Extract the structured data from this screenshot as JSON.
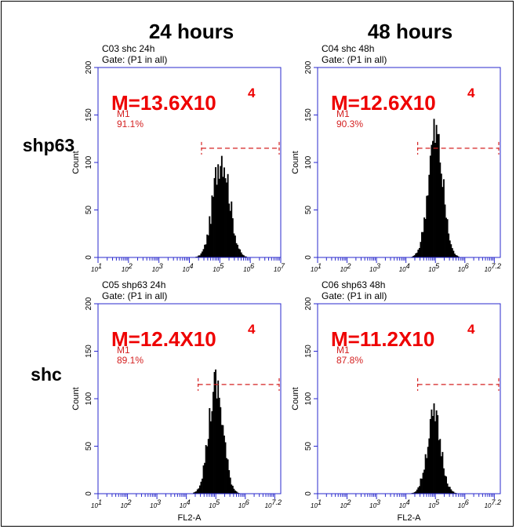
{
  "column_headers": [
    "24 hours",
    "48 hours"
  ],
  "row_labels": [
    "shp63",
    "shc"
  ],
  "colors": {
    "axis": "#2a2acc",
    "gate": "#d42020",
    "histogram": "#000000",
    "annotation": "#ee0000",
    "text": "#000000"
  },
  "chart_data": [
    {
      "type": "area",
      "title": "C03 shc 24h",
      "subtitle": "Gate: (P1 in all)",
      "xlabel": "",
      "ylabel": "Count",
      "x_scale": "log",
      "xlim": [
        10,
        10000000
      ],
      "ylim": [
        0,
        200
      ],
      "y_ticks": [
        0,
        50,
        100,
        150,
        200
      ],
      "x_ticks": [
        "10^1",
        "10^2",
        "10^3",
        "10^4",
        "10^5",
        "10^6",
        "10^7"
      ],
      "gate": {
        "name": "M1",
        "percent": "91.1%",
        "range": [
          25000,
          10000000
        ],
        "level": 115
      },
      "mean_label": "M=13.6X10",
      "mean_exponent": "4",
      "series": [
        {
          "log10_center": 5.05,
          "spread": 0.26,
          "peak": 110
        }
      ]
    },
    {
      "type": "area",
      "title": "C04 shc 48h",
      "subtitle": "Gate: (P1 in all)",
      "xlabel": "",
      "ylabel": "Count",
      "x_scale": "log",
      "xlim": [
        10,
        16000000
      ],
      "ylim": [
        0,
        200
      ],
      "y_ticks": [
        0,
        50,
        100,
        150,
        200
      ],
      "x_ticks": [
        "10^1",
        "10^2",
        "10^3",
        "10^4",
        "10^5",
        "10^6",
        "10^7.2"
      ],
      "gate": {
        "name": "M1",
        "percent": "90.3%",
        "range": [
          25000,
          16000000
        ],
        "level": 115
      },
      "mean_label": "M=12.6X10",
      "mean_exponent": "4",
      "series": [
        {
          "log10_center": 5.0,
          "spread": 0.25,
          "peak": 130
        }
      ]
    },
    {
      "type": "area",
      "title": "C05 shp63 24h",
      "subtitle": "Gate: (P1 in all)",
      "xlabel": "FL2-A",
      "ylabel": "Count",
      "x_scale": "log",
      "xlim": [
        10,
        16000000
      ],
      "ylim": [
        0,
        200
      ],
      "y_ticks": [
        0,
        50,
        100,
        150,
        200
      ],
      "x_ticks": [
        "10^1",
        "10^2",
        "10^3",
        "10^4",
        "10^5",
        "10^6",
        "10^7.2"
      ],
      "gate": {
        "name": "M1",
        "percent": "89.1%",
        "range": [
          25000,
          16000000
        ],
        "level": 115
      },
      "mean_label": "M=12.4X10",
      "mean_exponent": "4",
      "series": [
        {
          "log10_center": 5.0,
          "spread": 0.25,
          "peak": 112
        }
      ]
    },
    {
      "type": "area",
      "title": "C06 shp63 48h",
      "subtitle": "Gate: (P1 in all)",
      "xlabel": "FL2-A",
      "ylabel": "Count",
      "x_scale": "log",
      "xlim": [
        10,
        16000000
      ],
      "ylim": [
        0,
        200
      ],
      "y_ticks": [
        0,
        50,
        100,
        150,
        200
      ],
      "x_ticks": [
        "10^1",
        "10^2",
        "10^3",
        "10^4",
        "10^5",
        "10^6",
        "10^7.2"
      ],
      "gate": {
        "name": "M1",
        "percent": "87.8%",
        "range": [
          25000,
          16000000
        ],
        "level": 115
      },
      "mean_label": "M=11.2X10",
      "mean_exponent": "4",
      "series": [
        {
          "log10_center": 4.95,
          "spread": 0.24,
          "peak": 80
        }
      ]
    }
  ]
}
